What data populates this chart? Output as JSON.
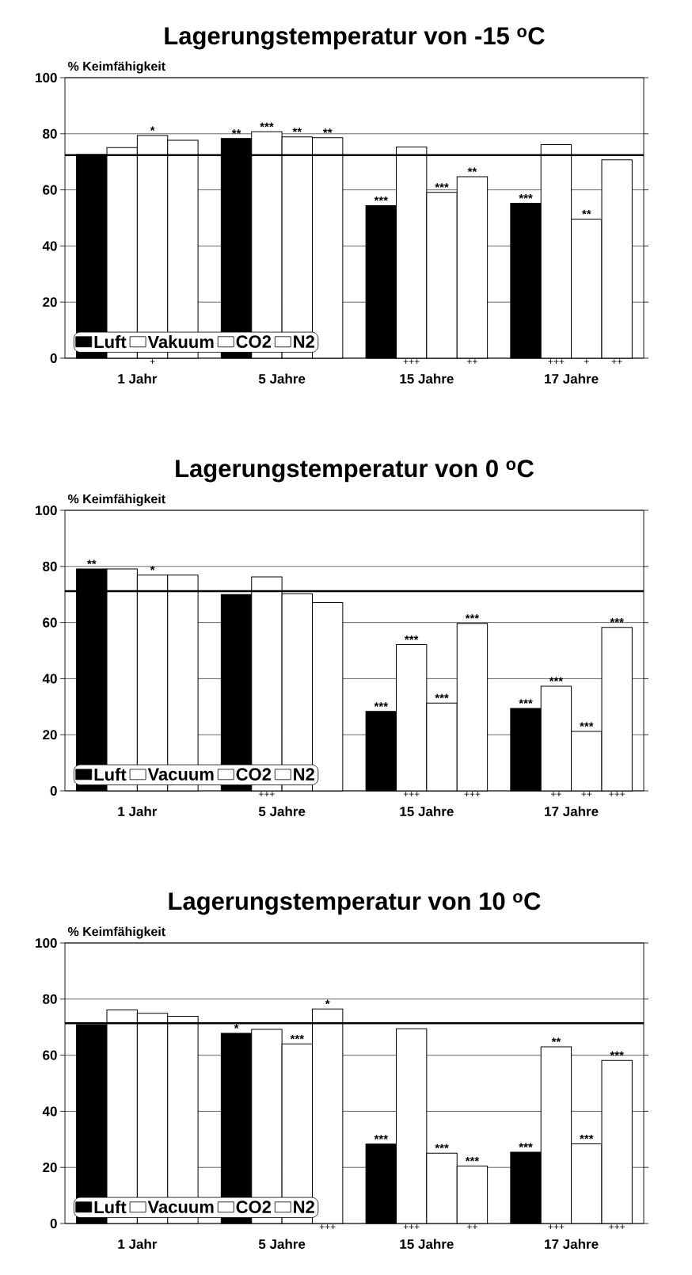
{
  "chart_data": [
    {
      "type": "bar",
      "title": "Lagerungstemperatur von -15 $^{o}$C",
      "ylabel": "% Keimfähigkeit",
      "categories": [
        "1 Jahr",
        "5 Jahre",
        "15 Jahre",
        "17 Jahre"
      ],
      "ylim": [
        0,
        100
      ],
      "yticks": [
        0,
        20,
        40,
        60,
        80,
        100
      ],
      "grid": "y",
      "legend": "bottom left",
      "series": [
        {
          "name": "Luft",
          "color": "#000000",
          "values": [
            72.6,
            78.3,
            54.4,
            55.2
          ],
          "value_labels": [
            null,
            null,
            null,
            null
          ]
        },
        {
          "name": "Vakuum",
          "color": "#ffffff",
          "values": [
            75.1,
            80.7,
            75.3,
            76.1
          ],
          "value_labels": [
            null,
            null,
            "+++",
            "+++"
          ]
        },
        {
          "name": "CO2",
          "color": "#ffffff",
          "values": [
            79.4,
            78.9,
            59.1,
            49.6
          ],
          "value_labels": [
            "+",
            null,
            null,
            "+"
          ]
        },
        {
          "name": "N2",
          "color": "#ffffff",
          "values": [
            77.7,
            78.6,
            64.7,
            70.7
          ],
          "value_labels": [
            null,
            null,
            "++",
            "++"
          ]
        }
      ],
      "ref_lines": [
        {
          "axis": "y",
          "value": 72.4,
          "color": "#000000"
        }
      ],
      "annotations": [
        {
          "text": "**",
          "y": 78.3
        },
        {
          "text": "***",
          "y": 54.4
        },
        {
          "text": "***",
          "y": 55.2
        },
        {
          "text": "***",
          "x": "5 Jahre",
          "y": 80.7
        },
        {
          "text": "*",
          "x": "1 Jahr",
          "y": 79.4
        },
        {
          "text": "**",
          "x": "5 Jahre",
          "y": 78.9
        },
        {
          "text": "***",
          "x": "15 Jahre",
          "y": 59.1
        },
        {
          "text": "**",
          "x": "17 Jahre",
          "y": 49.6
        },
        {
          "text": "**",
          "y": 78.6
        },
        {
          "text": "**",
          "y": 64.7
        }
      ]
    },
    {
      "type": "bar",
      "title": "Lagerungstemperatur von 0 $^{o}$C",
      "ylabel": "% Keimfähigkeit",
      "categories": [
        "1 Jahr",
        "5 Jahre",
        "15 Jahre",
        "17 Jahre"
      ],
      "ylim": [
        0,
        100
      ],
      "yticks": [
        0,
        20,
        40,
        60,
        80,
        100
      ],
      "grid": "y",
      "legend": "bottom left",
      "series": [
        {
          "name": "Luft",
          "color": "#000000",
          "values": [
            79.1,
            70.0,
            28.3,
            29.4
          ],
          "value_labels": [
            null,
            null,
            null,
            null
          ]
        },
        {
          "name": "Vacuum",
          "color": "#ffffff",
          "values": [
            79.1,
            76.3,
            52.1,
            37.3
          ],
          "value_labels": [
            null,
            "+++",
            "+++",
            "++"
          ]
        },
        {
          "name": "CO2",
          "color": "#ffffff",
          "values": [
            76.9,
            70.3,
            31.3,
            21.2
          ],
          "value_labels": [
            null,
            null,
            null,
            "++"
          ]
        },
        {
          "name": "N2",
          "color": "#ffffff",
          "values": [
            76.9,
            67.1,
            59.7,
            58.3
          ],
          "value_labels": [
            null,
            null,
            "+++",
            "+++"
          ]
        }
      ],
      "ref_lines": [
        {
          "axis": "y",
          "value": 71.2,
          "color": "#000000"
        }
      ],
      "annotations": [
        {
          "text": "**",
          "y": 79.1
        },
        {
          "text": "***",
          "y": 28.3
        },
        {
          "text": "***",
          "y": 29.4
        },
        {
          "text": "***",
          "x": "15 Jahre",
          "y": 52.1
        },
        {
          "text": "***",
          "x": "17 Jahre",
          "y": 37.3
        },
        {
          "text": "*",
          "x": "1 Jahr",
          "y": 76.9
        },
        {
          "text": "***",
          "x": "15 Jahre",
          "y": 31.3
        },
        {
          "text": "***",
          "x": "17 Jahre",
          "y": 21.2
        },
        {
          "text": "***",
          "y": 59.7
        },
        {
          "text": "***",
          "y": 58.3
        }
      ]
    },
    {
      "type": "bar",
      "title": "Lagerungstemperatur von 10 $^{o}$C",
      "ylabel": "% Keimfähigkeit",
      "categories": [
        "1 Jahr",
        "5 Jahre",
        "15 Jahre",
        "17 Jahre"
      ],
      "ylim": [
        0,
        100
      ],
      "yticks": [
        0,
        20,
        40,
        60,
        80,
        100
      ],
      "grid": "y",
      "legend": "bottom left",
      "series": [
        {
          "name": "Luft",
          "color": "#000000",
          "values": [
            70.9,
            67.8,
            28.3,
            25.4
          ],
          "value_labels": [
            null,
            null,
            null,
            null
          ]
        },
        {
          "name": "Vacuum",
          "color": "#ffffff",
          "values": [
            76.1,
            69.2,
            69.4,
            63.0
          ],
          "value_labels": [
            null,
            null,
            "+++",
            "+++"
          ]
        },
        {
          "name": "CO2",
          "color": "#ffffff",
          "values": [
            74.9,
            64.0,
            25.1,
            28.4
          ],
          "value_labels": [
            null,
            null,
            null,
            null
          ]
        },
        {
          "name": "N2",
          "color": "#ffffff",
          "values": [
            73.9,
            76.5,
            20.5,
            58.1
          ],
          "value_labels": [
            null,
            "+++",
            "++",
            "+++"
          ]
        }
      ],
      "ref_lines": [
        {
          "axis": "y",
          "value": 71.4,
          "color": "#000000"
        }
      ],
      "annotations": [
        {
          "text": "*",
          "y": 67.8
        },
        {
          "text": "***",
          "y": 28.3
        },
        {
          "text": "***",
          "y": 25.4
        },
        {
          "text": "**",
          "x": "17 Jahre",
          "y": 63.0
        },
        {
          "text": "***",
          "x": "5 Jahre",
          "y": 64.0
        },
        {
          "text": "***",
          "x": "15 Jahre",
          "y": 25.1
        },
        {
          "text": "***",
          "x": "17 Jahre",
          "y": 28.4
        },
        {
          "text": "*",
          "y": 76.5
        },
        {
          "text": "***",
          "y": 20.5
        },
        {
          "text": "***",
          "y": 58.1
        }
      ]
    }
  ]
}
